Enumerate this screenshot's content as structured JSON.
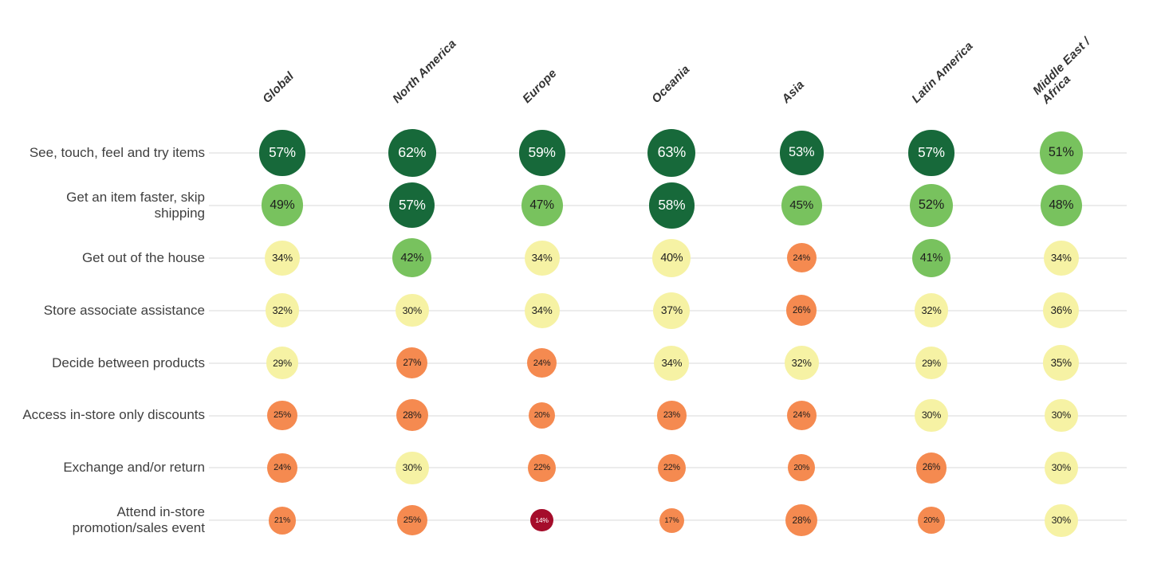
{
  "chart_data": {
    "type": "heatmap",
    "title": "",
    "columns": [
      "Global",
      "North America",
      "Europe",
      "Oceania",
      "Asia",
      "Latin America",
      "Middle East /\nAfrica"
    ],
    "rows": [
      {
        "label": "See, touch, feel and try items",
        "values": [
          57,
          62,
          59,
          63,
          53,
          57,
          51
        ]
      },
      {
        "label": "Get an item faster, skip shipping",
        "values": [
          49,
          57,
          47,
          58,
          45,
          52,
          48
        ]
      },
      {
        "label": "Get out of the house",
        "values": [
          34,
          42,
          34,
          40,
          24,
          41,
          34
        ]
      },
      {
        "label": "Store associate assistance",
        "values": [
          32,
          30,
          34,
          37,
          26,
          32,
          36
        ]
      },
      {
        "label": "Decide between products",
        "values": [
          29,
          27,
          24,
          34,
          32,
          29,
          35
        ]
      },
      {
        "label": "Access in-store only discounts",
        "values": [
          25,
          28,
          20,
          23,
          24,
          30,
          30
        ]
      },
      {
        "label": "Exchange and/or return",
        "values": [
          24,
          30,
          22,
          22,
          20,
          26,
          30
        ]
      },
      {
        "label": "Attend in-store promotion/sales event",
        "values": [
          21,
          25,
          14,
          17,
          28,
          20,
          30
        ]
      }
    ],
    "value_suffix": "%",
    "bubble_size": "area proportional to value",
    "color_scale": [
      {
        "min": 53,
        "fill": "#17693a",
        "text": "#ffffff",
        "name": "dark-green"
      },
      {
        "min": 41,
        "fill": "#78c25e",
        "text": "#1d1d1d",
        "name": "green"
      },
      {
        "min": 29,
        "fill": "#f6f2a4",
        "text": "#1d1d1d",
        "name": "pale-yellow"
      },
      {
        "min": 16,
        "fill": "#f58a50",
        "text": "#1d1d1d",
        "name": "orange"
      },
      {
        "min": 0,
        "fill": "#a50d2b",
        "text": "#ffffff",
        "name": "dark-red"
      }
    ]
  }
}
